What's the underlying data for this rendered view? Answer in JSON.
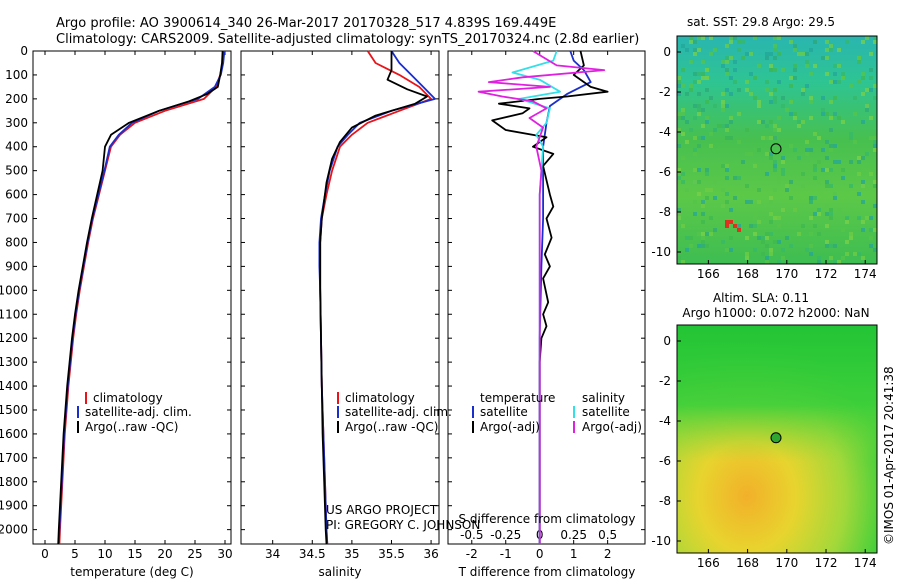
{
  "header": {
    "line1": "Argo profile: AO 3900614_340 26-Mar-2017 20170328_517 4.839S 169.449E",
    "line2": "Climatology: CARS2009. Satellite-adjusted climatology: synTS_20170324.nc (2.8d earlier)"
  },
  "credits": {
    "project": "US ARGO PROJECT",
    "pi": "PI: GREGORY C. JOHNSON",
    "imos": "©IMOS 01-Apr-2017 20:41:38"
  },
  "colors": {
    "climatology": "#e8141a",
    "satellite": "#1a2ecc",
    "argo": "#000000",
    "salinity_satellite": "#33e0e8",
    "salinity_argo": "#e020e0"
  },
  "chart_data": [
    {
      "id": "temperature",
      "type": "line",
      "xlabel": "temperature (deg C)",
      "xlim": [
        -2,
        31
      ],
      "xticks": [
        0,
        5,
        10,
        15,
        20,
        25,
        30
      ],
      "ylim": [
        0,
        2060
      ],
      "yticks": [
        0,
        100,
        200,
        300,
        400,
        500,
        600,
        700,
        800,
        900,
        1000,
        1100,
        1200,
        1300,
        1400,
        1500,
        1600,
        1700,
        1800,
        1900,
        2000
      ],
      "legend": [
        "climatology",
        "satellite-adj. clim.",
        "Argo(..raw -QC)"
      ],
      "series": [
        {
          "name": "climatology",
          "color_key": "climatology",
          "points": [
            [
              29.8,
              0
            ],
            [
              29.6,
              50
            ],
            [
              29.2,
              100
            ],
            [
              28.5,
              150
            ],
            [
              26.5,
              200
            ],
            [
              20,
              250
            ],
            [
              15,
              300
            ],
            [
              12.5,
              350
            ],
            [
              11,
              400
            ],
            [
              10,
              500
            ],
            [
              9,
              600
            ],
            [
              8,
              700
            ],
            [
              7.2,
              800
            ],
            [
              6.5,
              900
            ],
            [
              5.8,
              1000
            ],
            [
              5.2,
              1100
            ],
            [
              4.7,
              1200
            ],
            [
              4.3,
              1300
            ],
            [
              3.9,
              1400
            ],
            [
              3.6,
              1500
            ],
            [
              3.3,
              1600
            ],
            [
              3.1,
              1700
            ],
            [
              2.9,
              1800
            ],
            [
              2.7,
              1900
            ],
            [
              2.5,
              2000
            ],
            [
              2.4,
              2060
            ]
          ]
        },
        {
          "name": "satellite-adj. clim.",
          "color_key": "satellite",
          "points": [
            [
              29.9,
              0
            ],
            [
              29.7,
              50
            ],
            [
              29.3,
              100
            ],
            [
              28.3,
              150
            ],
            [
              25.5,
              200
            ],
            [
              19,
              250
            ],
            [
              14.5,
              300
            ],
            [
              12.3,
              350
            ],
            [
              10.8,
              400
            ],
            [
              9.9,
              500
            ],
            [
              8.9,
              600
            ],
            [
              7.9,
              700
            ],
            [
              7.1,
              800
            ],
            [
              6.4,
              900
            ],
            [
              5.7,
              1000
            ],
            [
              5.1,
              1100
            ],
            [
              4.6,
              1200
            ],
            [
              4.2,
              1300
            ],
            [
              3.8,
              1400
            ],
            [
              3.5,
              1500
            ],
            [
              3.2,
              1600
            ],
            [
              3,
              1700
            ],
            [
              2.8,
              1800
            ],
            [
              2.6,
              1900
            ],
            [
              2.4,
              2000
            ],
            [
              2.3,
              2060
            ]
          ]
        },
        {
          "name": "Argo(..raw -QC)",
          "color_key": "argo",
          "points": [
            [
              29.6,
              0
            ],
            [
              29.5,
              50
            ],
            [
              29.2,
              100
            ],
            [
              28.8,
              150
            ],
            [
              27,
              180
            ],
            [
              24,
              210
            ],
            [
              19,
              250
            ],
            [
              14,
              300
            ],
            [
              11,
              350
            ],
            [
              10,
              400
            ],
            [
              9.6,
              500
            ],
            [
              8.7,
              600
            ],
            [
              7.8,
              700
            ],
            [
              7,
              800
            ],
            [
              6.3,
              900
            ],
            [
              5.6,
              1000
            ],
            [
              5,
              1100
            ],
            [
              4.5,
              1200
            ],
            [
              4.1,
              1300
            ],
            [
              3.7,
              1400
            ],
            [
              3.4,
              1500
            ],
            [
              3.1,
              1600
            ],
            [
              2.9,
              1700
            ],
            [
              2.7,
              1800
            ],
            [
              2.5,
              1900
            ],
            [
              2.3,
              2000
            ],
            [
              2.2,
              2060
            ]
          ]
        }
      ]
    },
    {
      "id": "salinity",
      "type": "line",
      "xlabel": "salinity",
      "xlim": [
        33.6,
        36.1
      ],
      "xticks": [
        34,
        34.5,
        35,
        35.5,
        36
      ],
      "ylim": [
        0,
        2060
      ],
      "legend": [
        "climatology",
        "satellite-adj. clim.",
        "Argo(..raw -QC)"
      ],
      "series": [
        {
          "name": "climatology",
          "color_key": "climatology",
          "points": [
            [
              35.2,
              0
            ],
            [
              35.3,
              50
            ],
            [
              35.6,
              100
            ],
            [
              35.85,
              150
            ],
            [
              36.0,
              200
            ],
            [
              35.6,
              250
            ],
            [
              35.2,
              300
            ],
            [
              35.0,
              350
            ],
            [
              34.85,
              400
            ],
            [
              34.75,
              500
            ],
            [
              34.68,
              600
            ],
            [
              34.62,
              700
            ],
            [
              34.6,
              800
            ],
            [
              34.6,
              900
            ],
            [
              34.6,
              1000
            ],
            [
              34.61,
              1200
            ],
            [
              34.62,
              1400
            ],
            [
              34.64,
              1600
            ],
            [
              34.66,
              1800
            ],
            [
              34.68,
              2000
            ],
            [
              34.69,
              2060
            ]
          ]
        },
        {
          "name": "satellite-adj. clim.",
          "color_key": "satellite",
          "points": [
            [
              35.5,
              0
            ],
            [
              35.6,
              50
            ],
            [
              35.75,
              100
            ],
            [
              35.9,
              150
            ],
            [
              36.05,
              200
            ],
            [
              35.5,
              250
            ],
            [
              35.1,
              300
            ],
            [
              34.95,
              350
            ],
            [
              34.82,
              400
            ],
            [
              34.72,
              500
            ],
            [
              34.66,
              600
            ],
            [
              34.61,
              700
            ],
            [
              34.59,
              800
            ],
            [
              34.59,
              900
            ],
            [
              34.6,
              1000
            ],
            [
              34.61,
              1200
            ],
            [
              34.62,
              1400
            ],
            [
              34.64,
              1600
            ],
            [
              34.66,
              1800
            ],
            [
              34.68,
              2000
            ],
            [
              34.69,
              2060
            ]
          ]
        },
        {
          "name": "Argo(..raw -QC)",
          "color_key": "argo",
          "points": [
            [
              35.5,
              0
            ],
            [
              35.5,
              80
            ],
            [
              35.45,
              120
            ],
            [
              35.7,
              160
            ],
            [
              35.95,
              190
            ],
            [
              35.8,
              220
            ],
            [
              35.3,
              270
            ],
            [
              35.0,
              320
            ],
            [
              34.85,
              380
            ],
            [
              34.75,
              450
            ],
            [
              34.68,
              550
            ],
            [
              34.62,
              700
            ],
            [
              34.6,
              800
            ],
            [
              34.6,
              900
            ],
            [
              34.6,
              1000
            ],
            [
              34.61,
              1200
            ],
            [
              34.62,
              1400
            ],
            [
              34.63,
              1600
            ],
            [
              34.65,
              1800
            ],
            [
              34.67,
              2000
            ],
            [
              34.68,
              2060
            ]
          ]
        }
      ]
    },
    {
      "id": "difference",
      "type": "line",
      "xlabel": "T difference from climatology",
      "xlabel2": "S difference from climatology",
      "xlim": [
        -2.7,
        3.1
      ],
      "xticks_t": [
        -2,
        -1,
        0,
        1,
        2
      ],
      "xticks_s": [
        -0.5,
        -0.25,
        0,
        0.25,
        0.5
      ],
      "ylim": [
        0,
        2060
      ],
      "legend_temperature": {
        "title": "temperature",
        "items": [
          "satellite",
          "Argo(-adj)"
        ]
      },
      "legend_salinity": {
        "title": "salinity",
        "items": [
          "satellite",
          "Argo(-adj)"
        ]
      },
      "series": [
        {
          "name": "temperature satellite",
          "color_key": "satellite",
          "points": [
            [
              0.9,
              0
            ],
            [
              1.0,
              40
            ],
            [
              1.3,
              80
            ],
            [
              1.5,
              130
            ],
            [
              0.8,
              180
            ],
            [
              0.3,
              230
            ],
            [
              0.2,
              300
            ],
            [
              0.1,
              400
            ],
            [
              0.1,
              500
            ],
            [
              0.1,
              700
            ],
            [
              0.05,
              900
            ],
            [
              0,
              1200
            ],
            [
              0,
              1500
            ],
            [
              0,
              1800
            ],
            [
              0,
              2060
            ]
          ]
        },
        {
          "name": "temperature Argo(-adj)",
          "color_key": "argo",
          "points": [
            [
              1.2,
              0
            ],
            [
              1.3,
              60
            ],
            [
              1.0,
              100
            ],
            [
              1.5,
              150
            ],
            [
              2.0,
              170
            ],
            [
              0.8,
              190
            ],
            [
              0.0,
              200
            ],
            [
              -1.2,
              220
            ],
            [
              -0.3,
              240
            ],
            [
              -0.5,
              260
            ],
            [
              -1.4,
              290
            ],
            [
              -1.0,
              330
            ],
            [
              0.2,
              360
            ],
            [
              -0.2,
              400
            ],
            [
              0.4,
              430
            ],
            [
              0.1,
              480
            ],
            [
              0.3,
              600
            ],
            [
              0.4,
              650
            ],
            [
              0.2,
              700
            ],
            [
              0.35,
              780
            ],
            [
              0.15,
              850
            ],
            [
              0.3,
              900
            ],
            [
              0.1,
              950
            ],
            [
              0.25,
              1050
            ],
            [
              0.1,
              1100
            ],
            [
              0.2,
              1150
            ],
            [
              0.05,
              1200
            ],
            [
              0,
              1300
            ],
            [
              0,
              1500
            ],
            [
              0,
              1800
            ],
            [
              0,
              2060
            ]
          ]
        },
        {
          "name": "salinity satellite",
          "color_key": "salinity_satellite",
          "points": [
            [
              0.5,
              0
            ],
            [
              0.4,
              40
            ],
            [
              -0.8,
              90
            ],
            [
              0.0,
              120
            ],
            [
              0.6,
              170
            ],
            [
              -0.6,
              200
            ],
            [
              0.3,
              240
            ],
            [
              0.2,
              300
            ],
            [
              -0.1,
              350
            ],
            [
              0.1,
              400
            ],
            [
              0.0,
              600
            ],
            [
              0.0,
              900
            ],
            [
              0,
              1200
            ],
            [
              0,
              1500
            ],
            [
              0,
              1800
            ],
            [
              0,
              2060
            ]
          ]
        },
        {
          "name": "salinity Argo(-adj)",
          "color_key": "salinity_argo",
          "points": [
            [
              -0.2,
              0
            ],
            [
              0.5,
              60
            ],
            [
              1.9,
              80
            ],
            [
              -0.5,
              110
            ],
            [
              -1.5,
              130
            ],
            [
              0.3,
              150
            ],
            [
              -1.8,
              170
            ],
            [
              -1.1,
              190
            ],
            [
              -0.2,
              210
            ],
            [
              0.2,
              240
            ],
            [
              -0.3,
              280
            ],
            [
              0.1,
              320
            ],
            [
              -0.1,
              400
            ],
            [
              0.05,
              500
            ],
            [
              0,
              600
            ],
            [
              0,
              800
            ],
            [
              0,
              1000
            ],
            [
              0,
              2060
            ]
          ]
        }
      ]
    },
    {
      "id": "sst_map",
      "type": "heatmap",
      "title": "sat. SST: 29.8  Argo: 29.5",
      "xlim": [
        164.4,
        174.6
      ],
      "ylim": [
        -10.6,
        0.8
      ],
      "xticks": [
        166,
        168,
        170,
        172,
        174
      ],
      "yticks": [
        0,
        -2,
        -4,
        -6,
        -8,
        -10
      ],
      "marker": {
        "lon": 169.449,
        "lat": -4.839
      }
    },
    {
      "id": "sla_map",
      "type": "heatmap",
      "title": "Altim. SLA: 0.11",
      "subtitle": "Argo h1000: 0.072  h2000: NaN",
      "xlim": [
        164.4,
        174.6
      ],
      "ylim": [
        -10.6,
        0.8
      ],
      "xticks": [
        166,
        168,
        170,
        172,
        174
      ],
      "yticks": [
        0,
        -2,
        -4,
        -6,
        -8,
        -10
      ],
      "marker": {
        "lon": 169.449,
        "lat": -4.839
      }
    }
  ]
}
